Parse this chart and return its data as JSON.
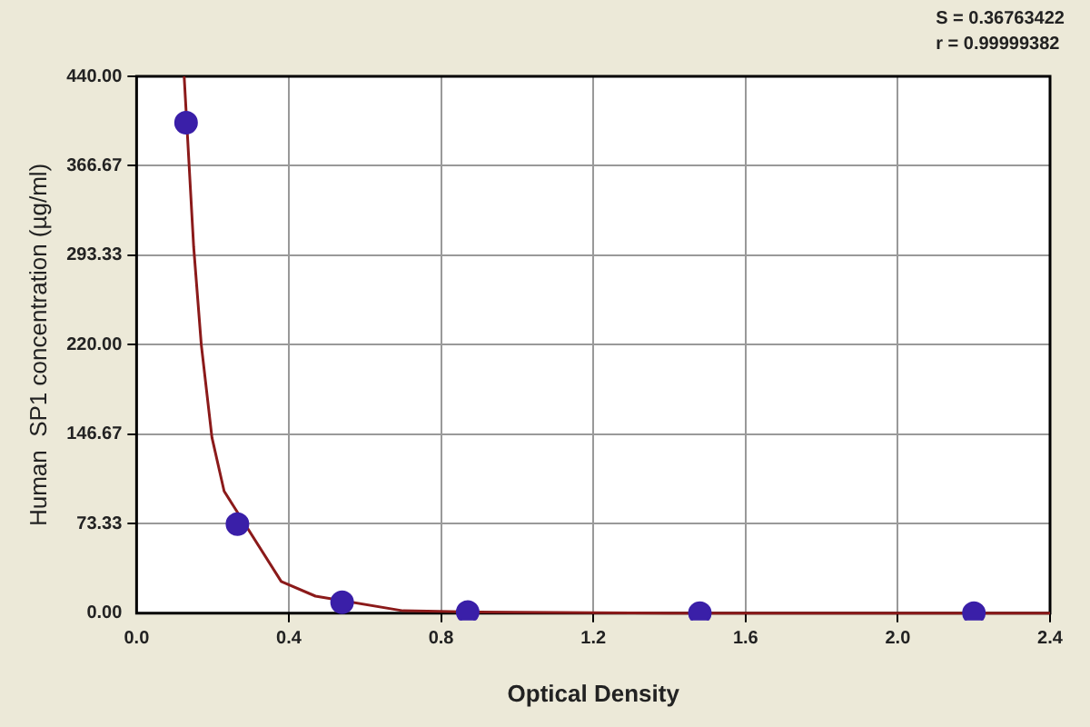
{
  "chart_data": {
    "type": "scatter",
    "xlabel": "Optical Density",
    "ylabel": "Human  SP1 concentration (µg/ml)",
    "annotations": [
      "S = 0.36763422",
      "r = 0.99999382"
    ],
    "xlim": [
      0,
      2.4
    ],
    "xticks": [
      {
        "value": 0,
        "label": "0.0"
      },
      0.4,
      0.8,
      1.2,
      1.6,
      {
        "value": 2,
        "label": "2.0"
      },
      2.4
    ],
    "ylim": [
      0,
      440
    ],
    "yticks": [
      {
        "value": 0,
        "label": "0.00"
      },
      73.33,
      146.67,
      {
        "value": 220,
        "label": "220.00"
      },
      293.33,
      366.67,
      {
        "value": 440,
        "label": "440.00"
      }
    ],
    "grid": true,
    "legend": false,
    "marker": "circle",
    "series": [
      {
        "color": "#3a1fa8",
        "x": [
          0.13,
          0.265,
          0.54,
          0.87,
          1.48,
          2.2
        ],
        "values": [
          402,
          73,
          9,
          1,
          0,
          0
        ]
      },
      {
        "type": "line",
        "color": "#8b1a1a",
        "marker": "none",
        "x": [
          0.125,
          0.15,
          0.17,
          0.198,
          0.23,
          0.38,
          0.47,
          0.7,
          0.9,
          1.4,
          2.4
        ],
        "values": [
          440,
          300,
          220,
          144,
          100,
          26,
          14,
          2,
          1,
          0,
          0
        ]
      }
    ]
  }
}
